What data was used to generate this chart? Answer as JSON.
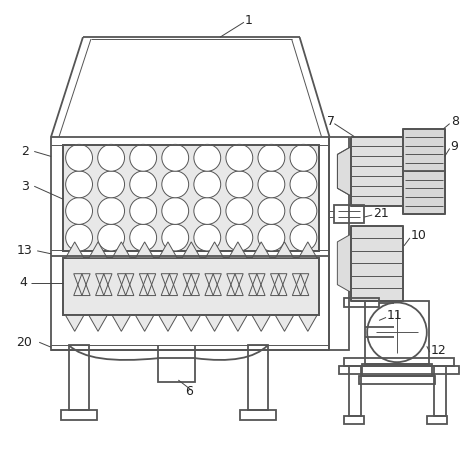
{
  "background_color": "#ffffff",
  "line_color": "#555555",
  "lw": 1.3,
  "tlw": 0.7,
  "fs": 9.0,
  "ann_lw": 0.7
}
